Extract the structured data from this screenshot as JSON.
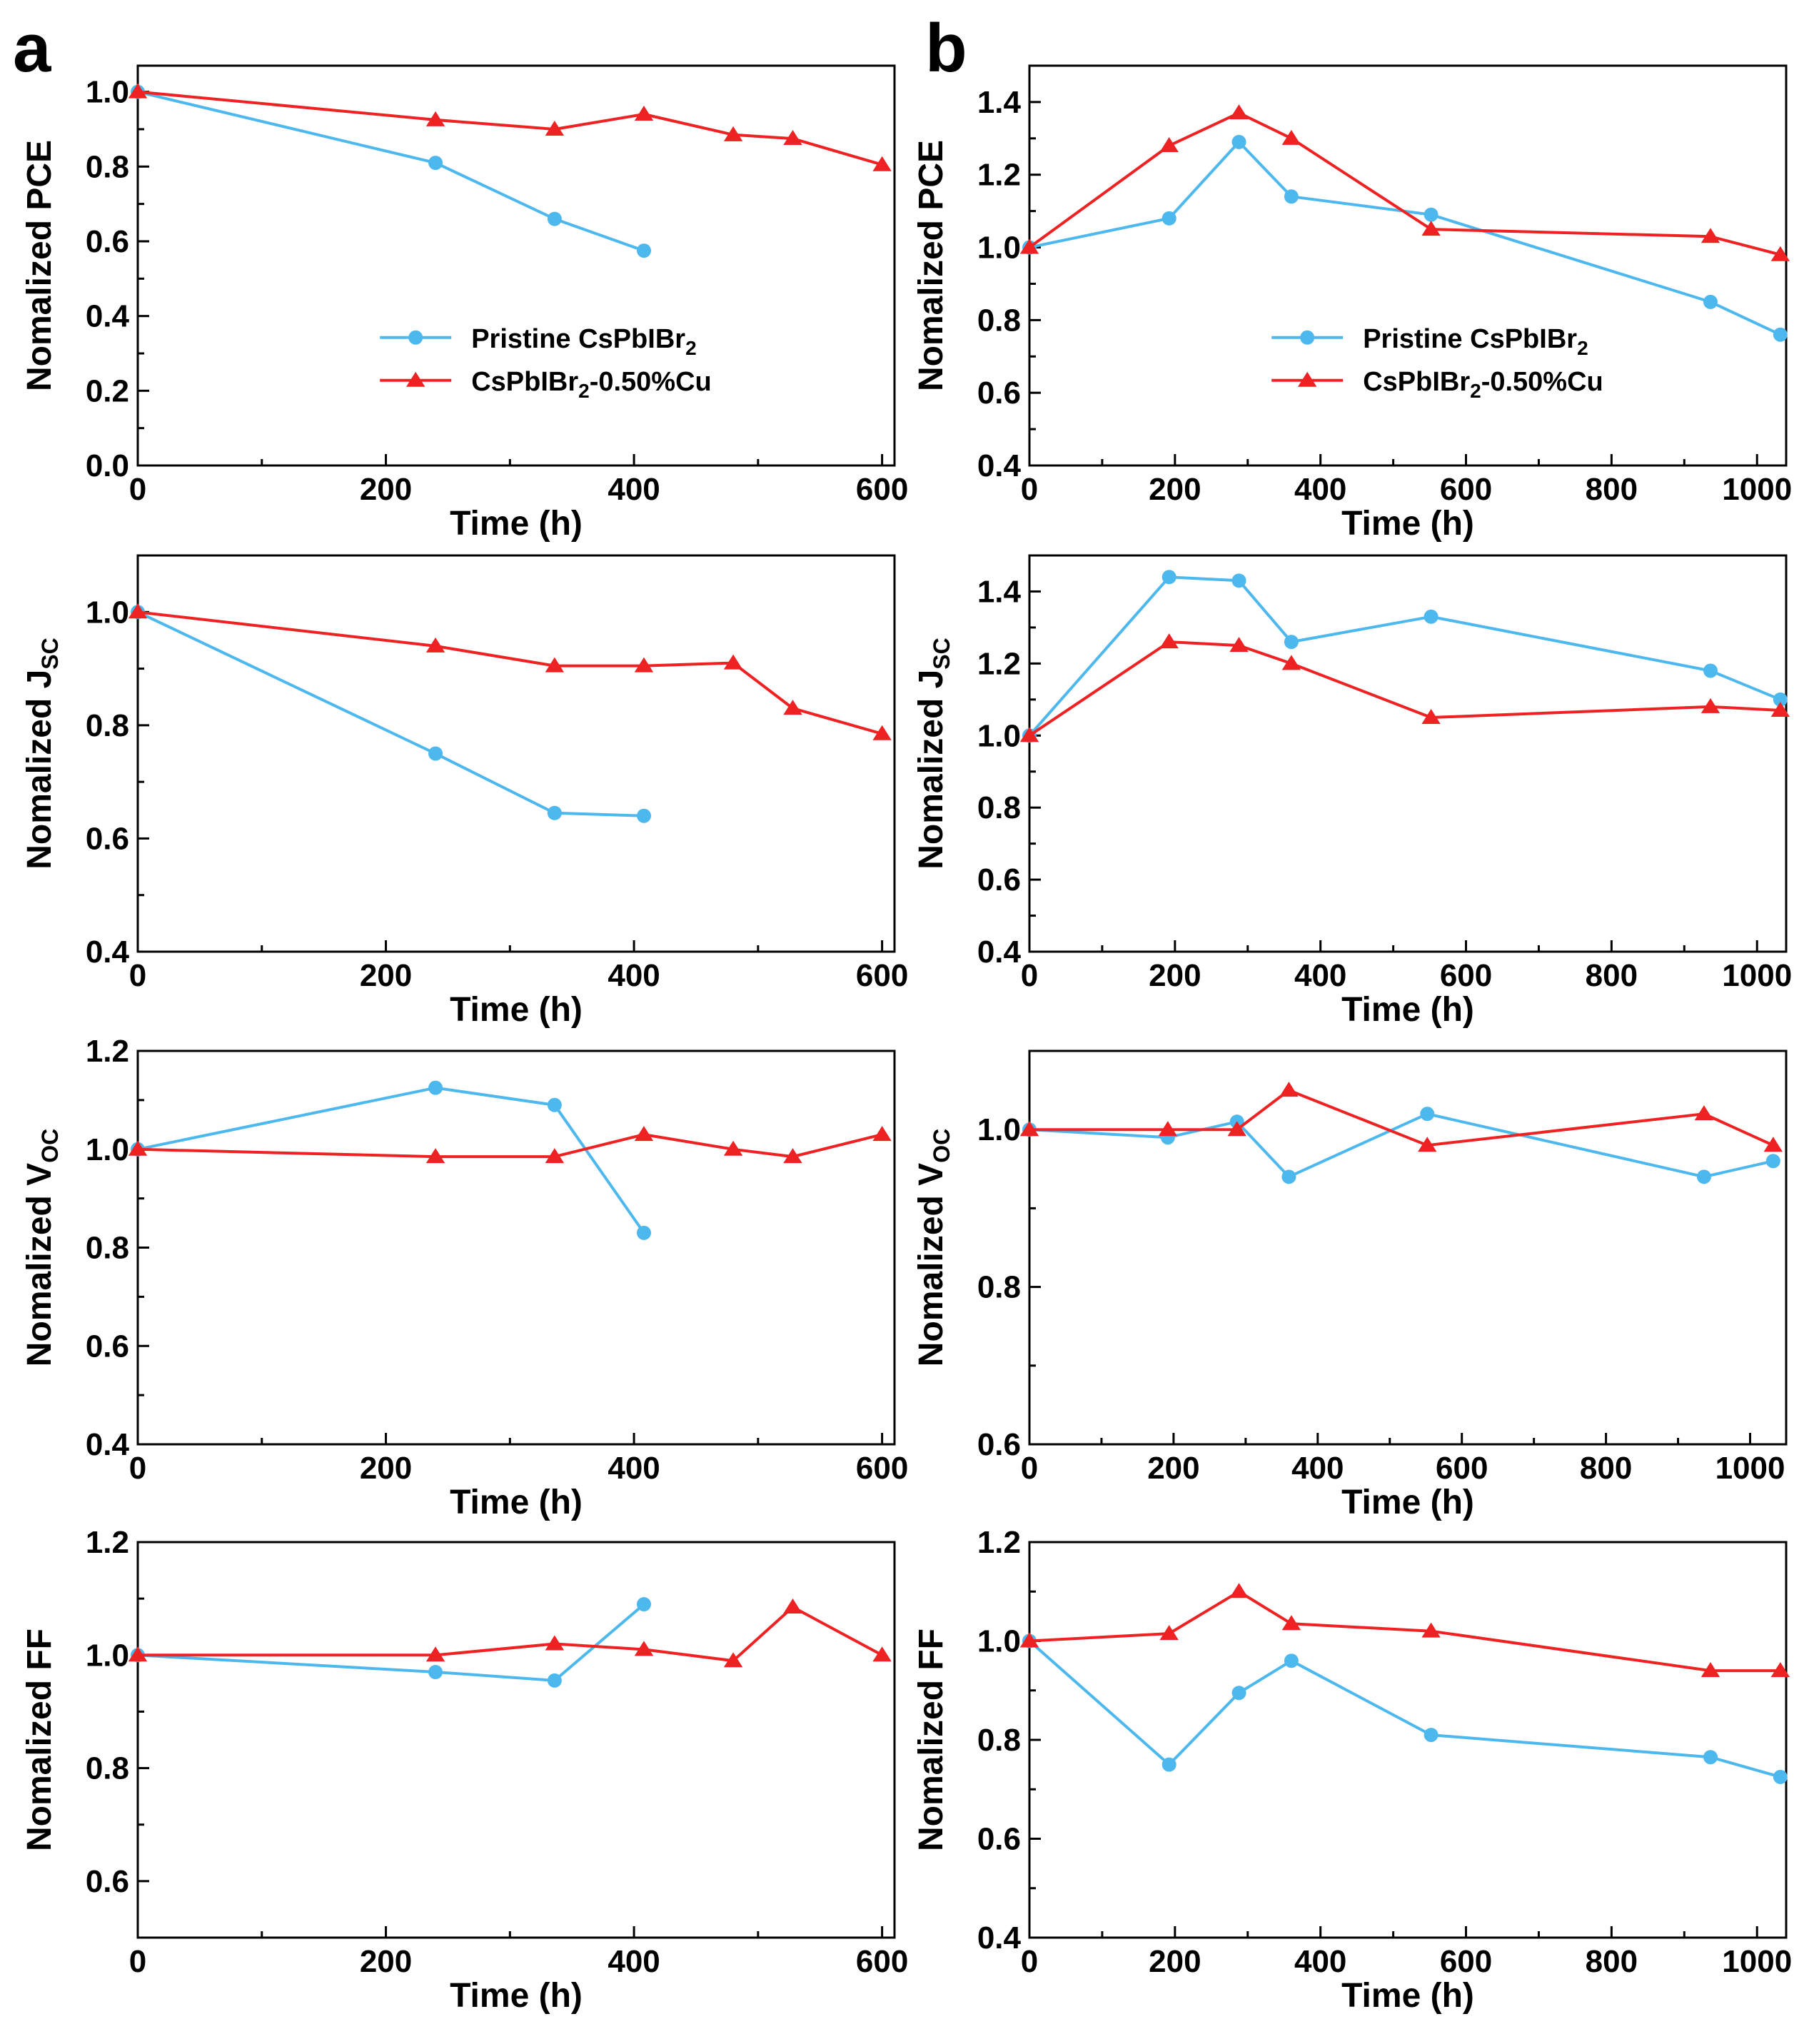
{
  "panel_labels": [
    "a",
    "b"
  ],
  "colors": {
    "pristine": "#4db8ee",
    "cu": "#ee2222",
    "axis": "#000000"
  },
  "chart_data": [
    {
      "id": "a-pce",
      "type": "line",
      "ylabel_main": "Nomalized PCE",
      "ylabel_sub": "",
      "xlabel": "Time (h)",
      "xlim": [
        0,
        610
      ],
      "ylim": [
        0,
        1.07
      ],
      "xticks": [
        0,
        200,
        400,
        600
      ],
      "yticks": [
        0.0,
        0.2,
        0.4,
        0.6,
        0.8,
        1.0
      ],
      "yfmt": 1,
      "legend": true,
      "series": [
        {
          "name": "Pristine CsPbIBr",
          "name_sub": "2",
          "name_rest": "",
          "key": "pristine",
          "marker": "circle",
          "x": [
            0,
            240,
            336,
            408
          ],
          "y": [
            1.0,
            0.81,
            0.66,
            0.575
          ]
        },
        {
          "name": "CsPbIBr",
          "name_sub": "2",
          "name_rest": "-0.50%Cu",
          "key": "cu",
          "marker": "triangle",
          "x": [
            0,
            240,
            336,
            408,
            480,
            528,
            600
          ],
          "y": [
            1.0,
            0.925,
            0.9,
            0.94,
            0.885,
            0.875,
            0.805
          ]
        }
      ]
    },
    {
      "id": "b-pce",
      "type": "line",
      "ylabel_main": "Nomalized PCE",
      "ylabel_sub": "",
      "xlabel": "Time (h)",
      "xlim": [
        0,
        1040
      ],
      "ylim": [
        0.4,
        1.5
      ],
      "xticks": [
        0,
        200,
        400,
        600,
        800,
        1000
      ],
      "yticks": [
        0.4,
        0.6,
        0.8,
        1.0,
        1.2,
        1.4
      ],
      "yfmt": 1,
      "legend": true,
      "series": [
        {
          "name": "Pristine CsPbIBr",
          "name_sub": "2",
          "name_rest": "",
          "key": "pristine",
          "marker": "circle",
          "x": [
            0,
            192,
            288,
            360,
            552,
            936,
            1032
          ],
          "y": [
            1.0,
            1.08,
            1.29,
            1.14,
            1.09,
            0.85,
            0.76
          ]
        },
        {
          "name": "CsPbIBr",
          "name_sub": "2",
          "name_rest": "-0.50%Cu",
          "key": "cu",
          "marker": "triangle",
          "x": [
            0,
            192,
            288,
            360,
            552,
            936,
            1032
          ],
          "y": [
            1.0,
            1.28,
            1.37,
            1.3,
            1.05,
            1.03,
            0.98
          ]
        }
      ]
    },
    {
      "id": "a-jsc",
      "type": "line",
      "ylabel_main": "Nomalized J",
      "ylabel_sub": "SC",
      "xlabel": "Time (h)",
      "xlim": [
        0,
        610
      ],
      "ylim": [
        0.4,
        1.1
      ],
      "xticks": [
        0,
        200,
        400,
        600
      ],
      "yticks": [
        0.4,
        0.6,
        0.8,
        1.0
      ],
      "yfmt": 1,
      "legend": false,
      "series": [
        {
          "name": "Pristine",
          "key": "pristine",
          "marker": "circle",
          "x": [
            0,
            240,
            336,
            408
          ],
          "y": [
            1.0,
            0.75,
            0.645,
            0.64
          ]
        },
        {
          "name": "Cu",
          "key": "cu",
          "marker": "triangle",
          "x": [
            0,
            240,
            336,
            408,
            480,
            528,
            600
          ],
          "y": [
            1.0,
            0.94,
            0.905,
            0.905,
            0.91,
            0.83,
            0.785
          ]
        }
      ]
    },
    {
      "id": "b-jsc",
      "type": "line",
      "ylabel_main": "Nomalized J",
      "ylabel_sub": "SC",
      "xlabel": "Time (h)",
      "xlim": [
        0,
        1040
      ],
      "ylim": [
        0.4,
        1.5
      ],
      "xticks": [
        0,
        200,
        400,
        600,
        800,
        1000
      ],
      "yticks": [
        0.4,
        0.6,
        0.8,
        1.0,
        1.2,
        1.4
      ],
      "yfmt": 1,
      "legend": false,
      "series": [
        {
          "name": "Pristine",
          "key": "pristine",
          "marker": "circle",
          "x": [
            0,
            192,
            288,
            360,
            552,
            936,
            1032
          ],
          "y": [
            1.0,
            1.44,
            1.43,
            1.26,
            1.33,
            1.18,
            1.1
          ]
        },
        {
          "name": "Cu",
          "key": "cu",
          "marker": "triangle",
          "x": [
            0,
            192,
            288,
            360,
            552,
            936,
            1032
          ],
          "y": [
            1.0,
            1.26,
            1.25,
            1.2,
            1.05,
            1.08,
            1.07
          ]
        }
      ]
    },
    {
      "id": "a-voc",
      "type": "line",
      "ylabel_main": "Nomalized V",
      "ylabel_sub": "OC",
      "xlabel": "Time (h)",
      "xlim": [
        0,
        610
      ],
      "ylim": [
        0.4,
        1.2
      ],
      "xticks": [
        0,
        200,
        400,
        600
      ],
      "yticks": [
        0.4,
        0.6,
        0.8,
        1.0,
        1.2
      ],
      "yfmt": 1,
      "legend": false,
      "series": [
        {
          "name": "Pristine",
          "key": "pristine",
          "marker": "circle",
          "x": [
            0,
            240,
            336,
            408
          ],
          "y": [
            1.0,
            1.125,
            1.09,
            0.83
          ]
        },
        {
          "name": "Cu",
          "key": "cu",
          "marker": "triangle",
          "x": [
            0,
            240,
            336,
            408,
            480,
            528,
            600
          ],
          "y": [
            1.0,
            0.985,
            0.985,
            1.03,
            1.0,
            0.985,
            1.03
          ]
        }
      ]
    },
    {
      "id": "b-voc",
      "type": "line",
      "ylabel_main": "Nomalized V",
      "ylabel_sub": "OC",
      "xlabel": "Time (h)",
      "xlim": [
        0,
        1050
      ],
      "ylim": [
        0.6,
        1.1
      ],
      "xticks": [
        0,
        200,
        400,
        600,
        800,
        1000
      ],
      "yticks": [
        0.6,
        0.8,
        1.0
      ],
      "yfmt": 1,
      "legend": false,
      "series": [
        {
          "name": "Pristine",
          "key": "pristine",
          "marker": "circle",
          "x": [
            0,
            192,
            288,
            360,
            552,
            936,
            1032
          ],
          "y": [
            1.0,
            0.99,
            1.01,
            0.94,
            1.02,
            0.94,
            0.96
          ]
        },
        {
          "name": "Cu",
          "key": "cu",
          "marker": "triangle",
          "x": [
            0,
            192,
            288,
            360,
            552,
            936,
            1032
          ],
          "y": [
            1.0,
            1.0,
            1.0,
            1.05,
            0.98,
            1.02,
            0.98
          ]
        }
      ]
    },
    {
      "id": "a-ff",
      "type": "line",
      "ylabel_main": "Nomalized FF",
      "ylabel_sub": "",
      "xlabel": "Time (h)",
      "xlim": [
        0,
        610
      ],
      "ylim": [
        0.5,
        1.2
      ],
      "xticks": [
        0,
        200,
        400,
        600
      ],
      "yticks": [
        0.6,
        0.8,
        1.0,
        1.2
      ],
      "yfmt": 1,
      "legend": false,
      "series": [
        {
          "name": "Pristine",
          "key": "pristine",
          "marker": "circle",
          "x": [
            0,
            240,
            336,
            408
          ],
          "y": [
            1.0,
            0.97,
            0.955,
            1.09
          ]
        },
        {
          "name": "Cu",
          "key": "cu",
          "marker": "triangle",
          "x": [
            0,
            240,
            336,
            408,
            480,
            528,
            600
          ],
          "y": [
            1.0,
            1.0,
            1.02,
            1.01,
            0.99,
            1.085,
            1.0
          ]
        }
      ]
    },
    {
      "id": "b-ff",
      "type": "line",
      "ylabel_main": "Nomalized FF",
      "ylabel_sub": "",
      "xlabel": "Time (h)",
      "xlim": [
        0,
        1040
      ],
      "ylim": [
        0.4,
        1.2
      ],
      "xticks": [
        0,
        200,
        400,
        600,
        800,
        1000
      ],
      "yticks": [
        0.4,
        0.6,
        0.8,
        1.0,
        1.2
      ],
      "yfmt": 1,
      "legend": false,
      "series": [
        {
          "name": "Pristine",
          "key": "pristine",
          "marker": "circle",
          "x": [
            0,
            192,
            288,
            360,
            552,
            936,
            1032
          ],
          "y": [
            1.0,
            0.75,
            0.895,
            0.96,
            0.81,
            0.765,
            0.725
          ]
        },
        {
          "name": "Cu",
          "key": "cu",
          "marker": "triangle",
          "x": [
            0,
            192,
            288,
            360,
            552,
            936,
            1032
          ],
          "y": [
            1.0,
            1.015,
            1.1,
            1.035,
            1.02,
            0.94,
            0.94
          ]
        }
      ]
    }
  ]
}
